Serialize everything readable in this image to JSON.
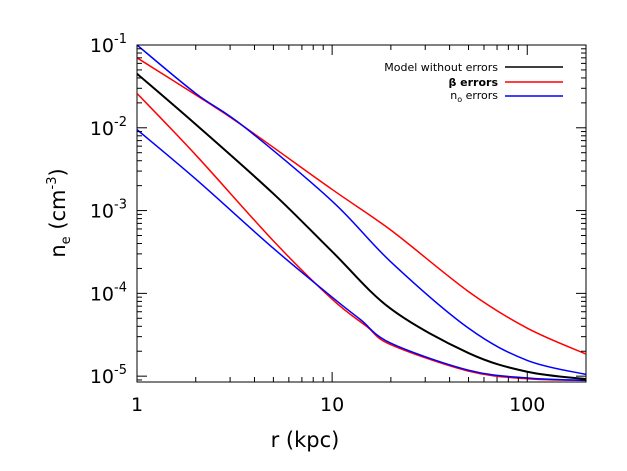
{
  "chart_data": {
    "type": "line",
    "xscale": "log",
    "yscale": "log",
    "xlim": [
      1,
      200
    ],
    "ylim": [
      8.5e-06,
      0.1
    ],
    "xlabel": "r (kpc)",
    "ylabel_main": "n",
    "ylabel_sub": "e",
    "ylabel_rest": " (cm",
    "ylabel_sup": "-3",
    "ylabel_close": ")",
    "x_ticks": [
      {
        "value": 1,
        "label": "1"
      },
      {
        "value": 10,
        "label": "10"
      },
      {
        "value": 100,
        "label": "100"
      }
    ],
    "y_ticks": [
      {
        "value": 1e-05,
        "base": "10",
        "exp": "-5"
      },
      {
        "value": 0.0001,
        "base": "10",
        "exp": "-4"
      },
      {
        "value": 0.001,
        "base": "10",
        "exp": "-3"
      },
      {
        "value": 0.01,
        "base": "10",
        "exp": "-2"
      },
      {
        "value": 0.1,
        "base": "10",
        "exp": "-1"
      }
    ],
    "legend_position": "top-right",
    "legend": [
      {
        "label": "Model without errors",
        "color": "#000000"
      },
      {
        "label": "β errors",
        "color": "#ff0000"
      },
      {
        "label_main": "n",
        "label_sub": "o",
        "label_rest": " errors",
        "color": "#0000ff"
      }
    ],
    "series": [
      {
        "legend_index": 0,
        "color": "#000000",
        "stroke_width": 2,
        "points": [
          [
            1,
            0.045
          ],
          [
            2,
            0.011
          ],
          [
            5,
            0.0016
          ],
          [
            10,
            0.00032
          ],
          [
            20,
            6.5e-05
          ],
          [
            50,
            1.9e-05
          ],
          [
            100,
            1.13e-05
          ],
          [
            200,
            9.2e-06
          ]
        ]
      },
      {
        "legend_index": 1,
        "color": "#ff0000",
        "stroke_width": 1.5,
        "points": [
          [
            1,
            0.07
          ],
          [
            2,
            0.025
          ],
          [
            3.5,
            0.0105
          ],
          [
            10,
            0.0018
          ],
          [
            20,
            0.00058
          ],
          [
            50,
            0.000105
          ],
          [
            100,
            3.8e-05
          ],
          [
            200,
            1.85e-05
          ]
        ]
      },
      {
        "legend_index": 1,
        "color": "#ff0000",
        "stroke_width": 1.5,
        "points": [
          [
            1,
            0.026
          ],
          [
            2,
            0.0047
          ],
          [
            5,
            0.00043
          ],
          [
            10,
            8.5e-05
          ],
          [
            15,
            4e-05
          ],
          [
            20,
            2.4e-05
          ],
          [
            50,
            1.15e-05
          ],
          [
            100,
            9.3e-06
          ],
          [
            200,
            8.9e-06
          ]
        ]
      },
      {
        "legend_index": 2,
        "color": "#0000ff",
        "stroke_width": 1.5,
        "points": [
          [
            1,
            0.1
          ],
          [
            2,
            0.026
          ],
          [
            3.5,
            0.0105
          ],
          [
            10,
            0.0013
          ],
          [
            20,
            0.00024
          ],
          [
            50,
            3.8e-05
          ],
          [
            100,
            1.55e-05
          ],
          [
            200,
            1.05e-05
          ]
        ]
      },
      {
        "legend_index": 2,
        "color": "#0000ff",
        "stroke_width": 1.5,
        "points": [
          [
            1,
            0.0095
          ],
          [
            2,
            0.0024
          ],
          [
            5,
            0.00035
          ],
          [
            10,
            9e-05
          ],
          [
            14,
            4.8e-05
          ],
          [
            20,
            2.5e-05
          ],
          [
            50,
            1.18e-05
          ],
          [
            100,
            9.5e-06
          ],
          [
            200,
            8.9e-06
          ]
        ]
      }
    ]
  }
}
